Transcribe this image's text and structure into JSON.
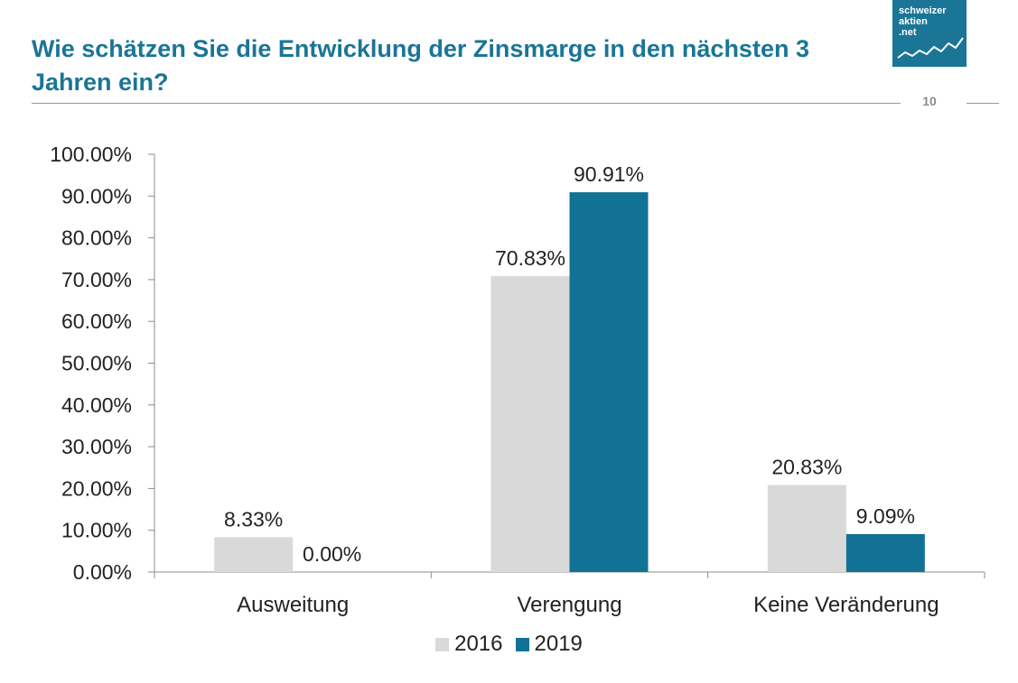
{
  "title": "Wie schätzen Sie die Entwicklung der Zinsmarge in den nächsten 3 Jahren ein?",
  "page_number": "10",
  "logo": {
    "line1": "schweizer",
    "line2": "aktien",
    "line3": ".net"
  },
  "colors": {
    "accent": "#1a7596",
    "series_2016": "#d9d9d9",
    "series_2019": "#127296",
    "axis": "#8c8c8c",
    "text": "#222222"
  },
  "chart_data": {
    "type": "bar",
    "categories": [
      "Ausweitung",
      "Verengung",
      "Keine Veränderung"
    ],
    "series": [
      {
        "name": "2016",
        "values": [
          8.33,
          70.83,
          20.83
        ],
        "labels": [
          "8.33%",
          "70.83%",
          "20.83%"
        ]
      },
      {
        "name": "2019",
        "values": [
          0.0,
          90.91,
          9.09
        ],
        "labels": [
          "0.00%",
          "90.91%",
          "9.09%"
        ]
      }
    ],
    "ylim": [
      0,
      100
    ],
    "yticks": [
      "0.00%",
      "10.00%",
      "20.00%",
      "30.00%",
      "40.00%",
      "50.00%",
      "60.00%",
      "70.00%",
      "80.00%",
      "90.00%",
      "100.00%"
    ],
    "grid": false,
    "legend": "bottom"
  }
}
